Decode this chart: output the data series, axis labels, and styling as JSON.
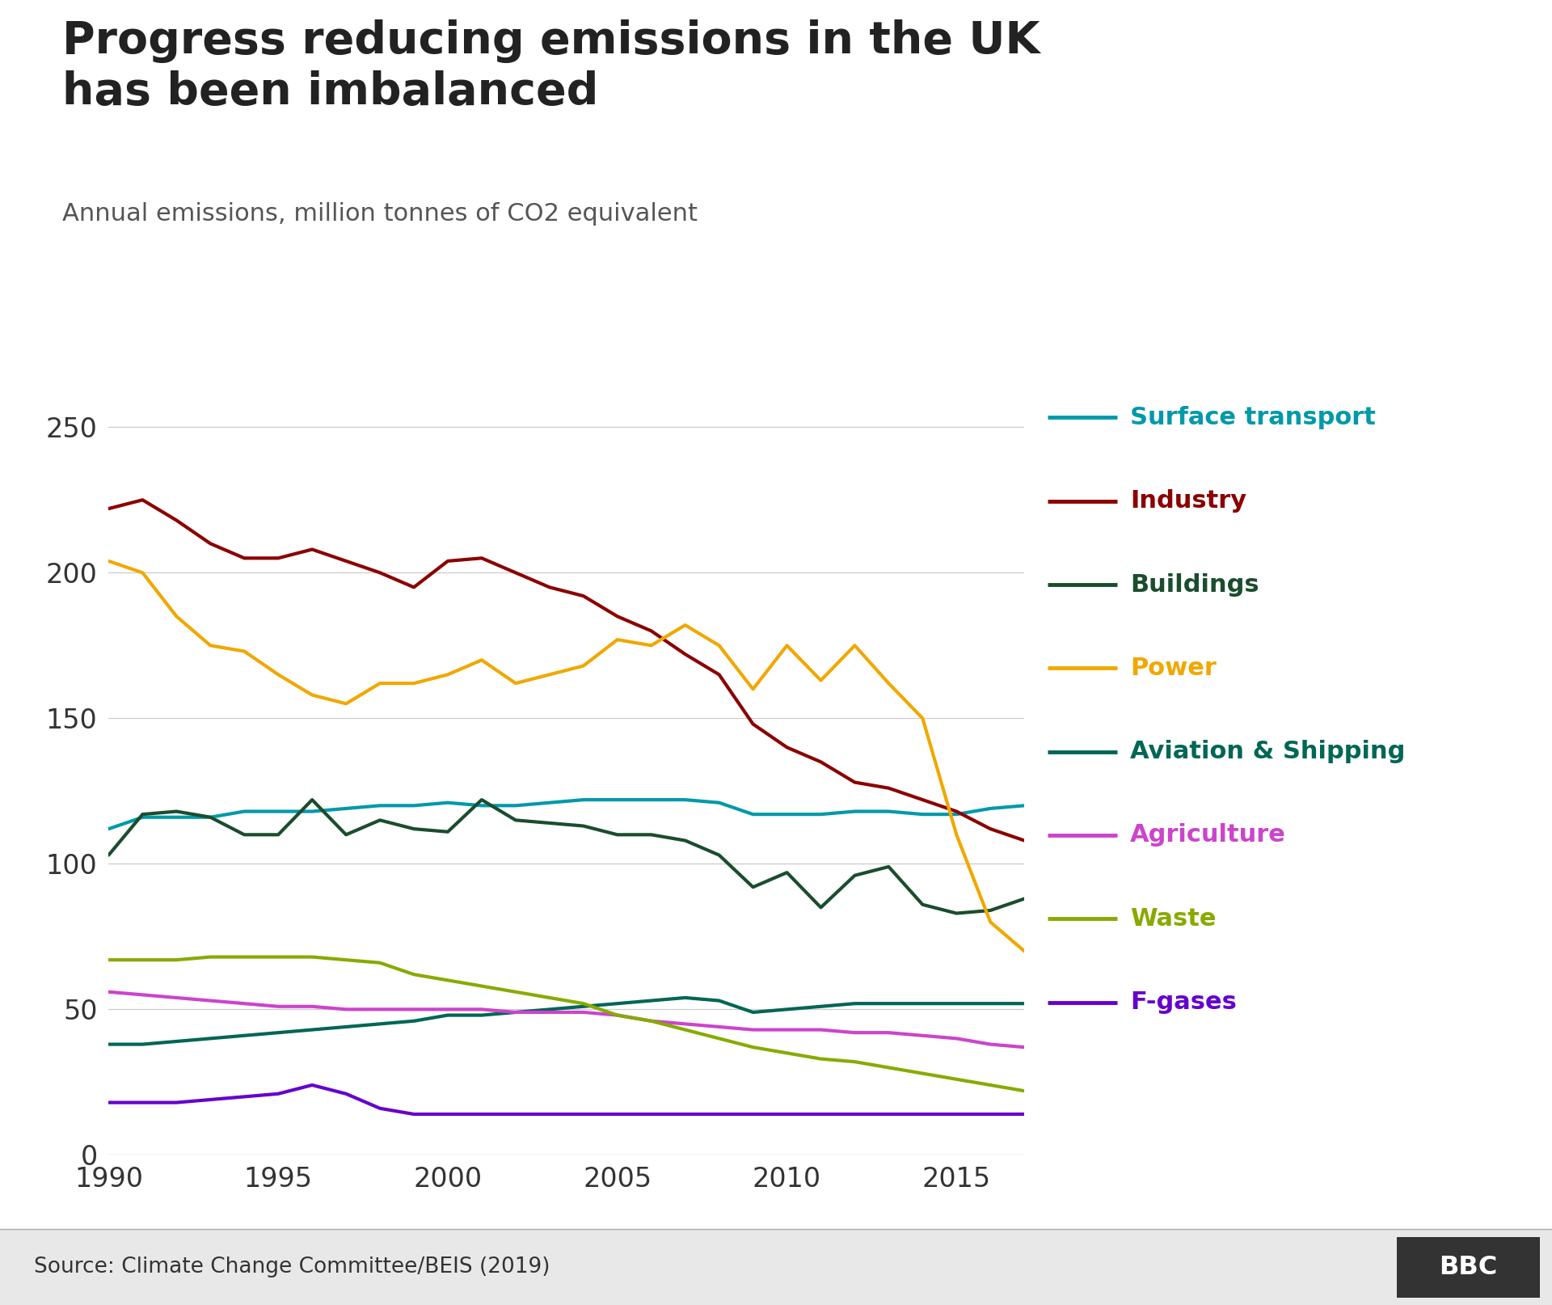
{
  "title": "Progress reducing emissions in the UK\nhas been imbalanced",
  "subtitle": "Annual emissions, million tonnes of CO2 equivalent",
  "source": "Source: Climate Change Committee/BEIS (2019)",
  "years": [
    1990,
    1991,
    1992,
    1993,
    1994,
    1995,
    1996,
    1997,
    1998,
    1999,
    2000,
    2001,
    2002,
    2003,
    2004,
    2005,
    2006,
    2007,
    2008,
    2009,
    2010,
    2011,
    2012,
    2013,
    2014,
    2015,
    2016,
    2017
  ],
  "series": {
    "Surface transport": {
      "color": "#0099aa",
      "values": [
        112,
        116,
        116,
        116,
        118,
        118,
        118,
        119,
        120,
        120,
        121,
        120,
        120,
        121,
        122,
        122,
        122,
        122,
        121,
        117,
        117,
        117,
        118,
        118,
        117,
        117,
        119,
        120
      ]
    },
    "Industry": {
      "color": "#8b0000",
      "values": [
        222,
        225,
        218,
        210,
        205,
        205,
        208,
        204,
        200,
        195,
        204,
        205,
        200,
        195,
        192,
        185,
        180,
        172,
        165,
        148,
        140,
        135,
        128,
        126,
        122,
        118,
        112,
        108
      ]
    },
    "Buildings": {
      "color": "#1a4d2e",
      "values": [
        103,
        117,
        118,
        116,
        110,
        110,
        122,
        110,
        115,
        112,
        111,
        122,
        115,
        114,
        113,
        110,
        110,
        108,
        103,
        92,
        97,
        85,
        96,
        99,
        86,
        83,
        84,
        88
      ]
    },
    "Power": {
      "color": "#f0a800",
      "values": [
        204,
        200,
        185,
        175,
        173,
        165,
        158,
        155,
        162,
        162,
        165,
        170,
        162,
        165,
        168,
        177,
        175,
        182,
        175,
        160,
        175,
        163,
        175,
        162,
        150,
        110,
        80,
        70
      ]
    },
    "Aviation & Shipping": {
      "color": "#006655",
      "values": [
        38,
        38,
        39,
        40,
        41,
        42,
        43,
        44,
        45,
        46,
        48,
        48,
        49,
        50,
        51,
        52,
        53,
        54,
        53,
        49,
        50,
        51,
        52,
        52,
        52,
        52,
        52,
        52
      ]
    },
    "Agriculture": {
      "color": "#cc44cc",
      "values": [
        56,
        55,
        54,
        53,
        52,
        51,
        51,
        50,
        50,
        50,
        50,
        50,
        49,
        49,
        49,
        48,
        46,
        45,
        44,
        43,
        43,
        43,
        42,
        42,
        41,
        40,
        38,
        37
      ]
    },
    "Waste": {
      "color": "#88aa00",
      "values": [
        67,
        67,
        67,
        68,
        68,
        68,
        68,
        67,
        66,
        62,
        60,
        58,
        56,
        54,
        52,
        48,
        46,
        43,
        40,
        37,
        35,
        33,
        32,
        30,
        28,
        26,
        24,
        22
      ]
    },
    "F-gases": {
      "color": "#6600cc",
      "values": [
        18,
        18,
        18,
        19,
        20,
        21,
        24,
        21,
        16,
        14,
        14,
        14,
        14,
        14,
        14,
        14,
        14,
        14,
        14,
        14,
        14,
        14,
        14,
        14,
        14,
        14,
        14,
        14
      ]
    }
  },
  "ylim": [
    0,
    260
  ],
  "yticks": [
    0,
    50,
    100,
    150,
    200,
    250
  ],
  "xlim": [
    1990,
    2017
  ],
  "xticks": [
    1990,
    1995,
    2000,
    2005,
    2010,
    2015
  ],
  "background_color": "#ffffff",
  "grid_color": "#cccccc",
  "legend_order": [
    "Surface transport",
    "Industry",
    "Buildings",
    "Power",
    "Aviation & Shipping",
    "Agriculture",
    "Waste",
    "F-gases"
  ],
  "footer_bg": "#e8e8e8",
  "bbc_logo_bg": "#333333",
  "bbc_logo_text": "#ffffff",
  "line_width": 3.0
}
